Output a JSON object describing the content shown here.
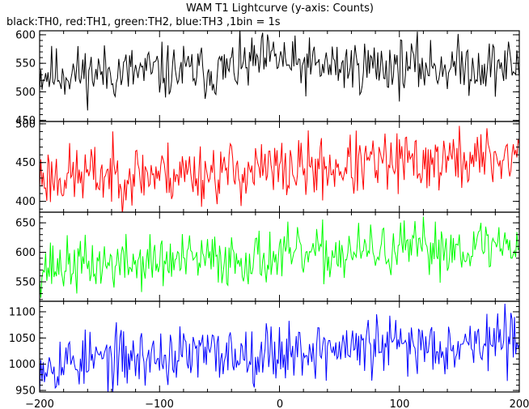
{
  "chart_data": {
    "type": "line",
    "title": "WAM T1 Lightcurve (y-axis: Counts)",
    "subtitle": "black:TH0, red:TH1, green:TH2, blue:TH3 ,1bin = 1s",
    "xlim": [
      -200,
      200
    ],
    "x_ticks": [
      -200,
      -100,
      0,
      100,
      200
    ],
    "x_tick_labels": [
      "−200",
      "−100",
      "0",
      "100",
      "200"
    ],
    "bin_seconds": 1,
    "panels": [
      {
        "name": "TH0",
        "color": "#000000",
        "ylim": [
          448,
          607
        ],
        "y_ticks": [
          450,
          500,
          550,
          600
        ],
        "y_tick_labels": [
          "450",
          "500",
          "550",
          "600"
        ],
        "trend": [
          [
            -200,
            532
          ],
          [
            -50,
            536
          ],
          [
            0,
            560
          ],
          [
            10,
            545
          ],
          [
            200,
            545
          ]
        ],
        "noise": 24,
        "seed": 11
      },
      {
        "name": "TH1",
        "color": "#ff0000",
        "ylim": [
          386,
          503
        ],
        "y_ticks": [
          400,
          450,
          500
        ],
        "y_tick_labels": [
          "400",
          "450",
          "500"
        ],
        "trend": [
          [
            -200,
            432
          ],
          [
            0,
            440
          ],
          [
            200,
            458
          ]
        ],
        "noise": 20,
        "seed": 23
      },
      {
        "name": "TH2",
        "color": "#00ff00",
        "ylim": [
          517,
          668
        ],
        "y_ticks": [
          550,
          600,
          650
        ],
        "y_tick_labels": [
          "550",
          "600",
          "650"
        ],
        "trend": [
          [
            -200,
            575
          ],
          [
            0,
            592
          ],
          [
            200,
            615
          ]
        ],
        "noise": 23,
        "seed": 37
      },
      {
        "name": "TH3",
        "color": "#0000ff",
        "ylim": [
          947,
          1120
        ],
        "y_ticks": [
          950,
          1000,
          1050,
          1100
        ],
        "y_tick_labels": [
          "950",
          "1000",
          "1050",
          "1100"
        ],
        "trend": [
          [
            -200,
            1003
          ],
          [
            0,
            1025
          ],
          [
            200,
            1045
          ]
        ],
        "noise": 28,
        "seed": 53
      }
    ]
  }
}
